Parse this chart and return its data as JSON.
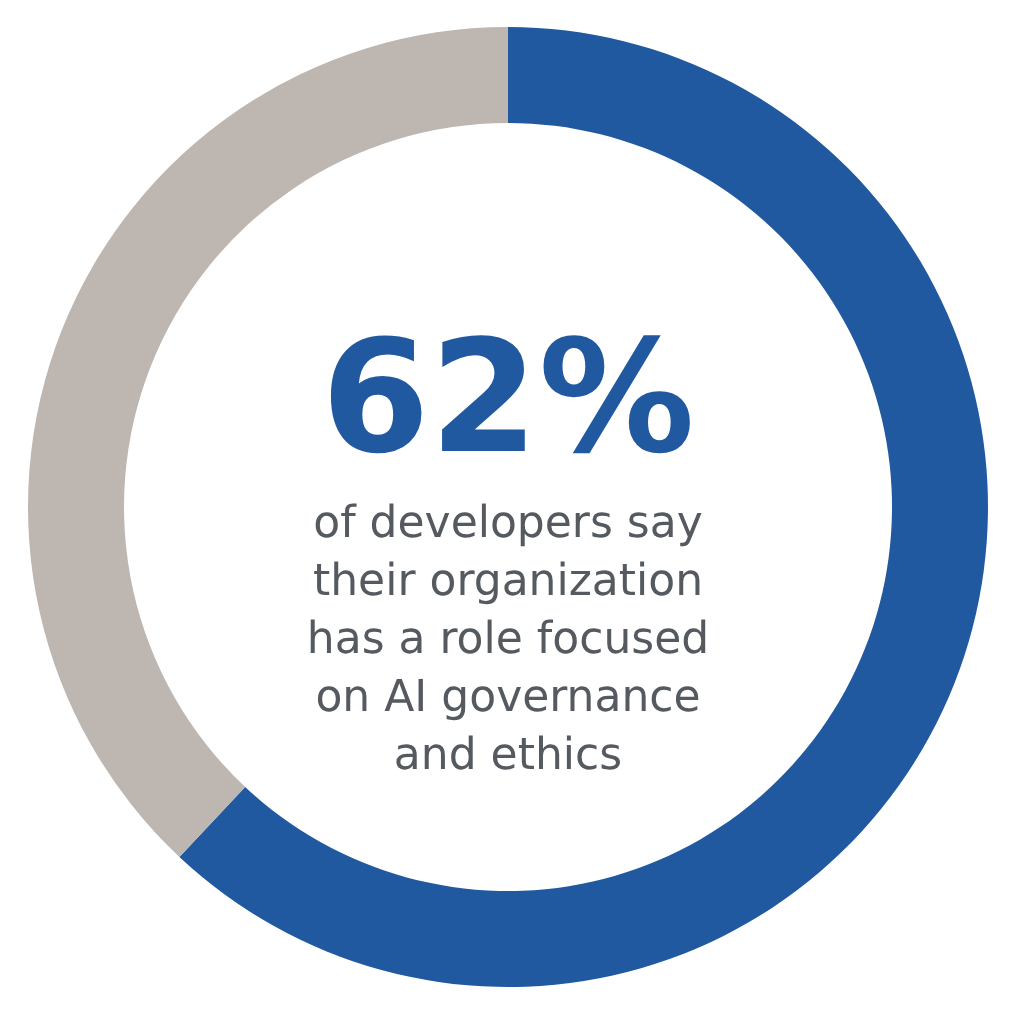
{
  "chart_data": {
    "type": "donut",
    "categories": [
      null,
      null
    ],
    "values": [
      62,
      38
    ],
    "colors": [
      "#2159a0",
      "#bdb6b1"
    ],
    "annotations": [
      "62%",
      "of developers say",
      "their organization",
      "has a role focused",
      "on AI governance",
      "and ethics"
    ]
  }
}
